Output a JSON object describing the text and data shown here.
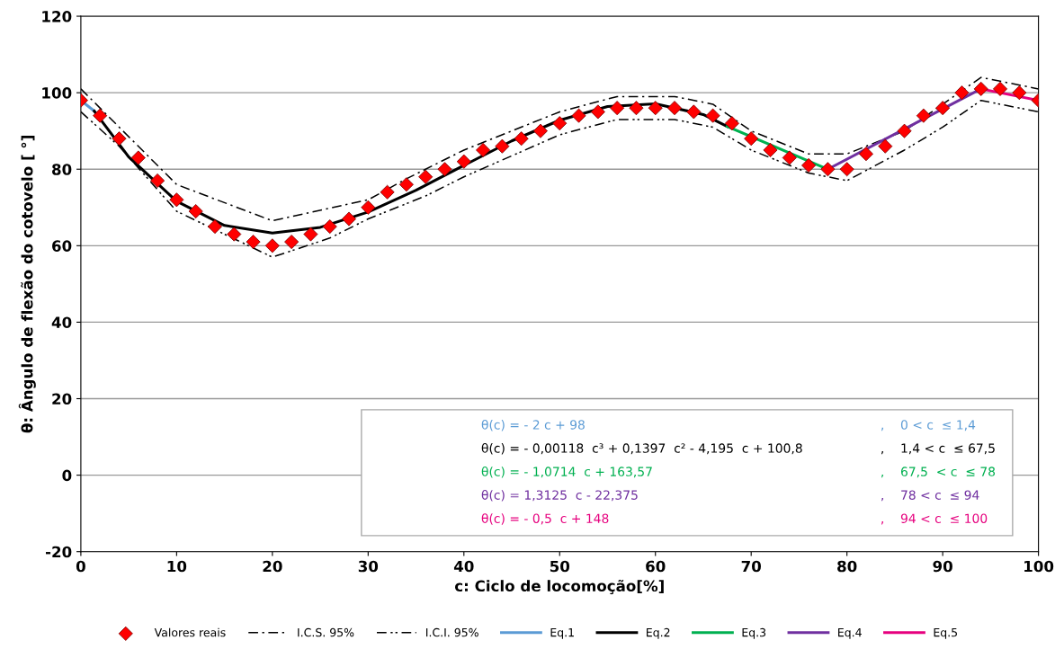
{
  "chart_data": {
    "type": "scatter",
    "xlabel": "c: Ciclo de locomoção[%]",
    "ylabel": "θ: Ângulo de flexão do cotovelo [ °]",
    "xlim": [
      0,
      100
    ],
    "ylim": [
      -20,
      120
    ],
    "xticks": [
      0,
      10,
      20,
      30,
      40,
      50,
      60,
      70,
      80,
      90,
      100
    ],
    "yticks": [
      -20,
      0,
      20,
      40,
      60,
      80,
      100,
      120
    ],
    "grid": "y",
    "legend": "bottom",
    "series": [
      {
        "name": "Valores reais",
        "marker": "diamond",
        "color": "#ff0000",
        "x": [
          0,
          2,
          4,
          6,
          8,
          10,
          12,
          14,
          16,
          18,
          20,
          22,
          24,
          26,
          28,
          30,
          32,
          34,
          36,
          38,
          40,
          42,
          44,
          46,
          48,
          50,
          52,
          54,
          56,
          58,
          60,
          62,
          64,
          66,
          68,
          70,
          72,
          74,
          76,
          78,
          80,
          82,
          84,
          86,
          88,
          90,
          92,
          94,
          96,
          98,
          100
        ],
        "values": [
          98,
          94,
          88,
          83,
          77,
          72,
          69,
          65,
          63,
          61,
          60,
          61,
          63,
          65,
          67,
          70,
          74,
          76,
          78,
          80,
          82,
          85,
          86,
          88,
          90,
          92,
          94,
          95,
          96,
          96,
          96,
          96,
          95,
          94,
          92,
          88,
          85,
          83,
          81,
          80,
          80,
          84,
          86,
          90,
          94,
          96,
          100,
          101,
          101,
          100,
          98
        ]
      },
      {
        "name": "I.C.S. 95%",
        "type": "line",
        "line_style": "dashed",
        "color": "#000000",
        "x": [
          0,
          4,
          10,
          20,
          30,
          34,
          40,
          50,
          56,
          62,
          66,
          70,
          76,
          80,
          86,
          90,
          94,
          100
        ],
        "values": [
          101,
          91,
          76,
          66.5,
          72,
          77.5,
          85,
          95,
          99,
          99,
          97,
          90,
          84,
          84,
          90,
          97,
          104,
          101
        ]
      },
      {
        "name": "I.C.I. 95%",
        "type": "line",
        "line_style": "dotted",
        "color": "#000000",
        "x": [
          0,
          4,
          10,
          20,
          26,
          30,
          36,
          40,
          50,
          56,
          62,
          66,
          70,
          76,
          80,
          86,
          90,
          94,
          100
        ],
        "values": [
          95,
          86,
          69,
          57,
          62,
          67,
          73,
          78,
          89,
          93,
          93,
          91,
          85,
          79,
          77,
          85,
          91,
          98,
          95
        ]
      },
      {
        "name": "Eq.1",
        "type": "line",
        "line_style": "solid",
        "color": "#5b9bd5",
        "x": [
          0,
          1.4
        ],
        "values": [
          98,
          95.2
        ]
      },
      {
        "name": "Eq.2",
        "type": "line",
        "line_style": "solid",
        "color": "#000000",
        "x": [
          1.4,
          5,
          10,
          15,
          20,
          25,
          30,
          35,
          40,
          45,
          50,
          55,
          60,
          65,
          67.5
        ],
        "values": [
          95.2,
          83.2,
          71.6,
          65.3,
          63.3,
          64.8,
          68.8,
          74.5,
          81.0,
          87.4,
          92.8,
          96.4,
          97.1,
          94.3,
          91.2
        ]
      },
      {
        "name": "Eq.3",
        "type": "line",
        "line_style": "solid",
        "color": "#00b050",
        "x": [
          67.5,
          78
        ],
        "values": [
          91.2,
          80.0
        ]
      },
      {
        "name": "Eq.4",
        "type": "line",
        "line_style": "solid",
        "color": "#7030a0",
        "x": [
          78,
          94
        ],
        "values": [
          80.0,
          101.0
        ]
      },
      {
        "name": "Eq.5",
        "type": "line",
        "line_style": "solid",
        "color": "#e6007e",
        "x": [
          94,
          100
        ],
        "values": [
          101.0,
          98.0
        ]
      }
    ],
    "annotations": [
      "θ(c) = - 2 c + 98",
      ",    0 < c  ≤ 1,4",
      "θ(c) = - 0,00118  c³ + 0,1397  c² - 4,195  c + 100,8",
      ",    1,4 < c  ≤ 67,5",
      "θ(c) = - 1,0714  c + 163,57",
      ",    67,5  < c  ≤ 78",
      "θ(c) = 1,3125  c - 22,375",
      ",    78 < c  ≤ 94",
      "θ(c) = - 0,5  c + 148",
      ",    94 < c  ≤ 100"
    ]
  }
}
